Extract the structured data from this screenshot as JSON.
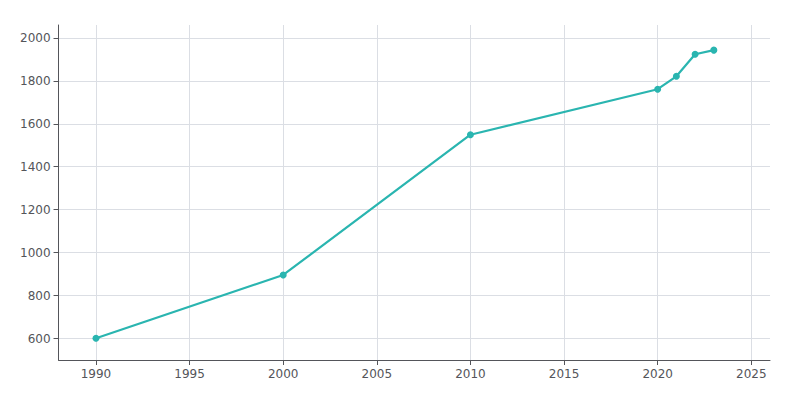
{
  "chart_data": {
    "type": "line",
    "x": [
      1990,
      2000,
      2010,
      2020,
      2021,
      2022,
      2023
    ],
    "values": [
      601,
      896,
      1549,
      1761,
      1821,
      1924,
      1943
    ],
    "color": "#2ab5b0",
    "marker": "circle",
    "xlim": [
      1988,
      2026
    ],
    "xticks": [
      1990,
      1995,
      2000,
      2005,
      2010,
      2015,
      2020,
      2025
    ],
    "ylim": [
      500,
      2060
    ],
    "yticks": [
      600,
      800,
      1000,
      1200,
      1400,
      1600,
      1800,
      2000
    ],
    "grid": true
  }
}
